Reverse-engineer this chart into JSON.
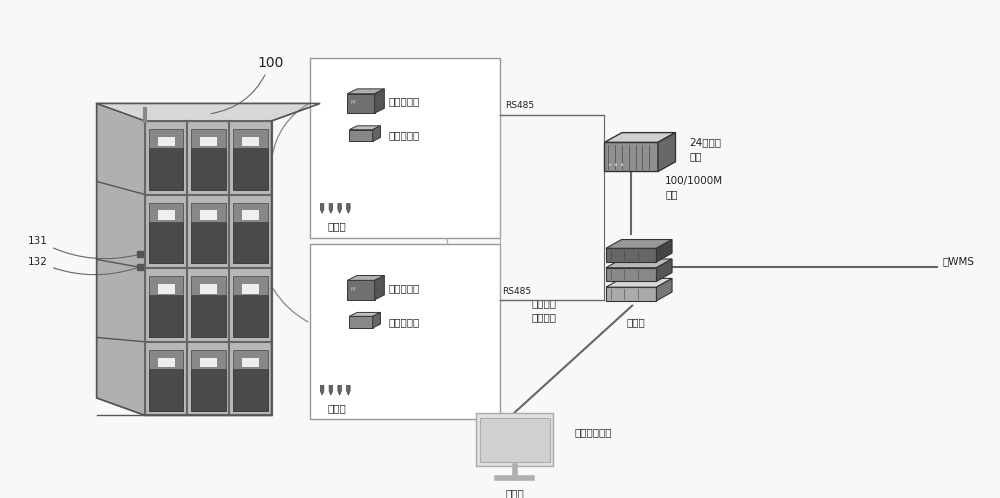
{
  "bg_color": "#f8f8f8",
  "text_color": "#222222",
  "line_color": "#666666",
  "box_edge_color": "#aaaaaa",
  "shelf_color_light": "#cccccc",
  "shelf_color_mid": "#999999",
  "shelf_color_dark": "#666666",
  "bin_color_dark": "#444444",
  "bin_color_mid": "#777777",
  "font_size_label": 9,
  "font_size_small": 7.5,
  "font_size_tiny": 6.5,
  "shelf_label": "100",
  "ref_131": "131",
  "ref_132": "132",
  "label_gateway": "24口数据\n网关",
  "label_switch": "交换机",
  "label_monitor_sys": "拣选监控系统",
  "label_allinone": "一体机",
  "label_rs485_1": "RS485",
  "label_rs485_2": "RS485",
  "label_net": "100/1000M\n网线",
  "label_per_set": "每个拣货\n料位一套",
  "label_wms": "去WMS",
  "label_data_tx_1": "数据变送器",
  "label_weight_1": "称重传感器",
  "label_switch_qty_1": "开关量",
  "label_data_tx_2": "数据变送器",
  "label_weight_2": "称重传感器",
  "label_switch_qty_2": "开关量"
}
